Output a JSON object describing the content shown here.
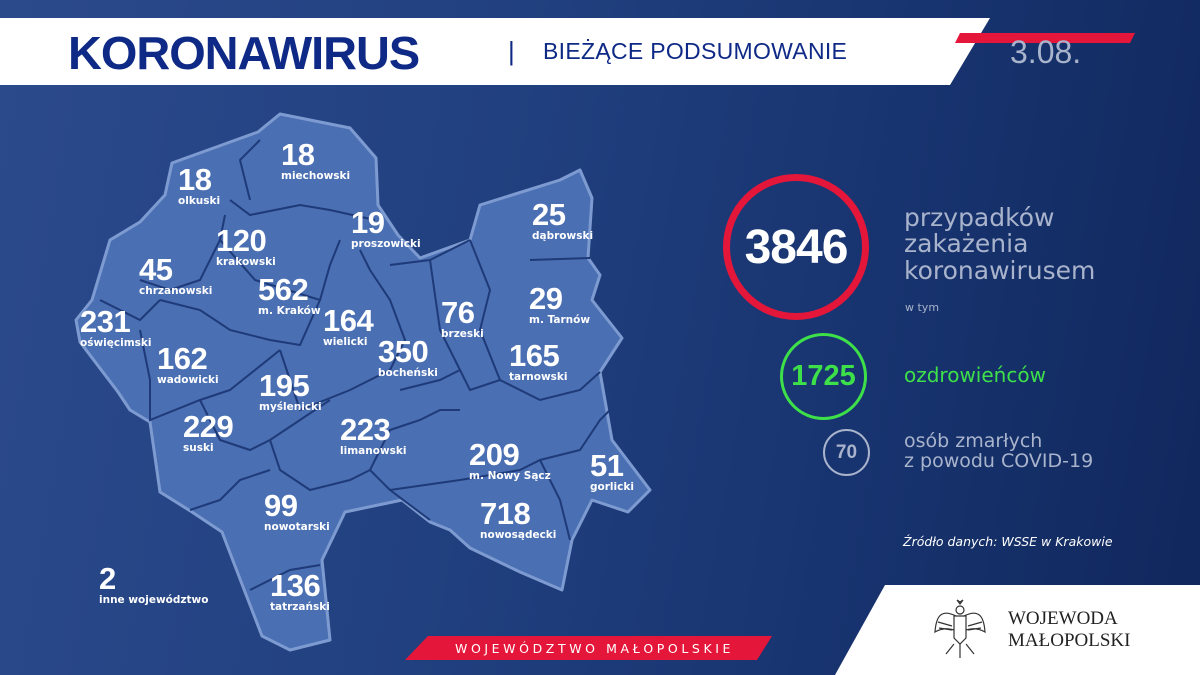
{
  "header": {
    "title": "KORONAWIRUS",
    "separator": "|",
    "subtitle": "BIEŻĄCE PODSUMOWANIE",
    "date": "3.08."
  },
  "map": {
    "districts": [
      {
        "count": "18",
        "name": "olkuski"
      },
      {
        "count": "18",
        "name": "miechowski"
      },
      {
        "count": "19",
        "name": "proszowicki"
      },
      {
        "count": "120",
        "name": "krakowski"
      },
      {
        "count": "45",
        "name": "chrzanowski"
      },
      {
        "count": "562",
        "name": "m. Kraków"
      },
      {
        "count": "164",
        "name": "wielicki"
      },
      {
        "count": "231",
        "name": "oświęcimski"
      },
      {
        "count": "162",
        "name": "wadowicki"
      },
      {
        "count": "76",
        "name": "brzeski"
      },
      {
        "count": "350",
        "name": "bocheński"
      },
      {
        "count": "25",
        "name": "dąbrowski"
      },
      {
        "count": "29",
        "name": "m. Tarnów"
      },
      {
        "count": "165",
        "name": "tarnowski"
      },
      {
        "count": "195",
        "name": "myślenicki"
      },
      {
        "count": "229",
        "name": "suski"
      },
      {
        "count": "223",
        "name": "limanowski"
      },
      {
        "count": "209",
        "name": "m. Nowy Sącz"
      },
      {
        "count": "51",
        "name": "gorlicki"
      },
      {
        "count": "718",
        "name": "nowosądecki"
      },
      {
        "count": "99",
        "name": "nowotarski"
      },
      {
        "count": "136",
        "name": "tatrzański"
      },
      {
        "count": "2",
        "name": "inne województwo"
      }
    ],
    "region_banner": "WOJEWÓDZTWO MAŁOPOLSKIE",
    "fill_color": "#4a6fb3"
  },
  "stats": {
    "total": {
      "value": "3846",
      "label": "przypadków zakażenia koronawirusem",
      "color": "#e4163a"
    },
    "including": "w tym",
    "recovered": {
      "value": "1725",
      "label": "ozdrowieńców",
      "color": "#3ee04a"
    },
    "deaths": {
      "value": "70",
      "label_line1": "osób zmarłych",
      "label_line2": "z powodu COVID-19"
    },
    "source": "Źródło danych: WSSE w Krakowie"
  },
  "footer": {
    "logo_line1": "WOJEWODA",
    "logo_line2": "MAŁOPOLSKI",
    "logo_icon": "polish-eagle-emblem"
  }
}
